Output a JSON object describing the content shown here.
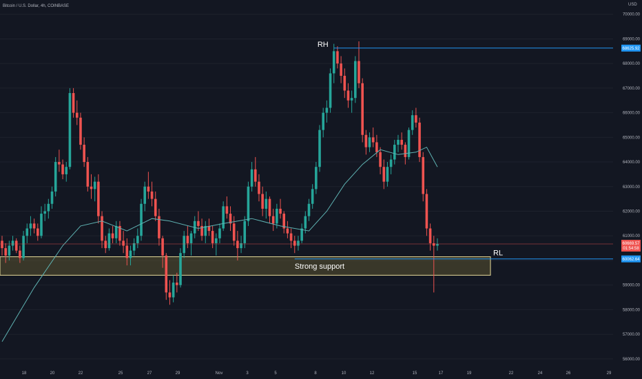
{
  "header": {
    "symbol": "Bitcoin / U.S. Dollar, 4h, COINBASE",
    "currency": "USD"
  },
  "colors": {
    "background": "#131722",
    "up": "#26a69a",
    "down": "#ef5350",
    "ma": "#5fb3b3",
    "level_line": "#2196f3",
    "support_fill": "#5a5230",
    "support_border": "#e8dc9a",
    "axis_text": "#b2b5be"
  },
  "chart_data": {
    "type": "candlestick",
    "y_axis": {
      "min": 55800,
      "max": 70300,
      "ticks": [
        56000,
        57000,
        58000,
        59000,
        60000,
        61000,
        62000,
        63000,
        64000,
        65000,
        66000,
        67000,
        68000,
        69000,
        70000
      ],
      "tick_labels": [
        "56000.00",
        "57000.00",
        "58000.00",
        "59000.00",
        "60000.00",
        "61000.00",
        "62000.00",
        "63000.00",
        "64000.00",
        "65000.00",
        "66000.00",
        "67000.00",
        "68000.00",
        "69000.00",
        "70000.00"
      ]
    },
    "x_axis": {
      "tick_labels": [
        "18",
        "20",
        "22",
        "25",
        "27",
        "29",
        "Nov",
        "3",
        "5",
        "8",
        "10",
        "12",
        "15",
        "17",
        "19",
        "22",
        "24",
        "26",
        "29"
      ]
    },
    "ohlc": [
      [
        60800,
        61000,
        60200,
        60500
      ],
      [
        60500,
        60700,
        59900,
        60200
      ],
      [
        60200,
        60800,
        60000,
        60600
      ],
      [
        60600,
        61000,
        60400,
        60800
      ],
      [
        60800,
        60900,
        60300,
        60400
      ],
      [
        60400,
        60600,
        59900,
        60100
      ],
      [
        60100,
        61200,
        60000,
        61000
      ],
      [
        61000,
        61500,
        60700,
        61300
      ],
      [
        61300,
        61800,
        61000,
        61500
      ],
      [
        61500,
        61700,
        61100,
        61300
      ],
      [
        61300,
        61500,
        60800,
        61000
      ],
      [
        61000,
        62200,
        60900,
        61900
      ],
      [
        61900,
        62300,
        61600,
        62000
      ],
      [
        62000,
        62500,
        61700,
        62300
      ],
      [
        62300,
        63000,
        62100,
        62800
      ],
      [
        62800,
        64200,
        62600,
        64000
      ],
      [
        64000,
        64500,
        63600,
        63900
      ],
      [
        63900,
        64100,
        63300,
        63500
      ],
      [
        63500,
        64000,
        63200,
        63800
      ],
      [
        63800,
        67000,
        63700,
        66800
      ],
      [
        66800,
        67000,
        65800,
        66000
      ],
      [
        66000,
        66500,
        65500,
        65800
      ],
      [
        65800,
        66000,
        64500,
        64700
      ],
      [
        64700,
        65000,
        63800,
        64000
      ],
      [
        64000,
        64200,
        62800,
        63000
      ],
      [
        63000,
        63500,
        62500,
        62900
      ],
      [
        62900,
        63400,
        62400,
        63200
      ],
      [
        63200,
        63500,
        61500,
        61800
      ],
      [
        61800,
        62000,
        60500,
        60800
      ],
      [
        60800,
        61000,
        60300,
        60500
      ],
      [
        60500,
        61300,
        60400,
        61100
      ],
      [
        61100,
        61400,
        60700,
        60900
      ],
      [
        60900,
        61600,
        60700,
        61400
      ],
      [
        61400,
        61600,
        60600,
        60800
      ],
      [
        60800,
        61200,
        60300,
        60600
      ],
      [
        60600,
        60900,
        59800,
        60100
      ],
      [
        60100,
        60600,
        59800,
        60400
      ],
      [
        60400,
        60900,
        60200,
        60700
      ],
      [
        60700,
        61300,
        60500,
        61000
      ],
      [
        61000,
        62500,
        60800,
        62300
      ],
      [
        62300,
        63200,
        62000,
        63000
      ],
      [
        63000,
        63600,
        62500,
        62800
      ],
      [
        62800,
        63200,
        62200,
        62500
      ],
      [
        62500,
        62800,
        61600,
        61800
      ],
      [
        61800,
        62100,
        60600,
        60900
      ],
      [
        60900,
        61000,
        59700,
        60200
      ],
      [
        60200,
        60300,
        58400,
        58700
      ],
      [
        58700,
        59200,
        58200,
        58500
      ],
      [
        58500,
        59400,
        58300,
        59100
      ],
      [
        59100,
        59500,
        58700,
        59000
      ],
      [
        59000,
        60500,
        58900,
        60300
      ],
      [
        60300,
        61200,
        60100,
        61000
      ],
      [
        61000,
        61400,
        60500,
        60700
      ],
      [
        60700,
        61200,
        60200,
        61100
      ],
      [
        61100,
        61800,
        60900,
        61600
      ],
      [
        61600,
        62000,
        61200,
        61400
      ],
      [
        61400,
        61700,
        60800,
        61000
      ],
      [
        61000,
        61600,
        60700,
        61400
      ],
      [
        61400,
        61700,
        61000,
        61200
      ],
      [
        61200,
        61400,
        60500,
        60700
      ],
      [
        60700,
        61100,
        60200,
        60900
      ],
      [
        60900,
        61500,
        60700,
        61300
      ],
      [
        61300,
        62400,
        61200,
        62200
      ],
      [
        62200,
        62600,
        61700,
        61900
      ],
      [
        61900,
        62200,
        61200,
        61500
      ],
      [
        61500,
        61800,
        60600,
        60800
      ],
      [
        60800,
        61200,
        60000,
        60500
      ],
      [
        60500,
        61000,
        60300,
        60700
      ],
      [
        60700,
        61800,
        60500,
        61600
      ],
      [
        61600,
        63200,
        61400,
        63000
      ],
      [
        63000,
        64000,
        62800,
        63700
      ],
      [
        63700,
        64200,
        63000,
        63200
      ],
      [
        63200,
        63500,
        62400,
        62700
      ],
      [
        62700,
        63000,
        61800,
        62100
      ],
      [
        62100,
        62800,
        61700,
        62500
      ],
      [
        62500,
        62600,
        61500,
        61800
      ],
      [
        61800,
        62100,
        61200,
        61500
      ],
      [
        61500,
        62300,
        61300,
        62100
      ],
      [
        62100,
        62500,
        61700,
        61900
      ],
      [
        61900,
        62000,
        61100,
        61300
      ],
      [
        61300,
        61600,
        60900,
        61100
      ],
      [
        61100,
        61300,
        60500,
        60800
      ],
      [
        60800,
        61000,
        60300,
        60600
      ],
      [
        60600,
        61000,
        60400,
        60800
      ],
      [
        60800,
        61500,
        60700,
        61300
      ],
      [
        61300,
        62000,
        61100,
        61800
      ],
      [
        61800,
        62500,
        61600,
        62300
      ],
      [
        62300,
        63100,
        62100,
        62900
      ],
      [
        62900,
        64000,
        62700,
        63800
      ],
      [
        63800,
        65500,
        63600,
        65300
      ],
      [
        65300,
        66200,
        65000,
        66000
      ],
      [
        66000,
        66500,
        65600,
        66200
      ],
      [
        66200,
        67800,
        66000,
        67600
      ],
      [
        67600,
        68800,
        67200,
        68500
      ],
      [
        68500,
        68700,
        67800,
        68000
      ],
      [
        68000,
        68300,
        67200,
        67500
      ],
      [
        67500,
        67800,
        66600,
        66900
      ],
      [
        66900,
        67200,
        66200,
        66500
      ],
      [
        66500,
        66900,
        66000,
        66600
      ],
      [
        66600,
        68300,
        66400,
        68100
      ],
      [
        68100,
        68900,
        67000,
        67200
      ],
      [
        67200,
        67400,
        64800,
        65100
      ],
      [
        65100,
        65300,
        64300,
        64600
      ],
      [
        64600,
        65200,
        64400,
        65000
      ],
      [
        65000,
        65400,
        64600,
        64800
      ],
      [
        64800,
        65100,
        64200,
        64400
      ],
      [
        64400,
        64600,
        63500,
        63800
      ],
      [
        63800,
        64100,
        62900,
        63200
      ],
      [
        63200,
        64000,
        63000,
        63800
      ],
      [
        63800,
        64300,
        63500,
        64100
      ],
      [
        64100,
        64900,
        63900,
        64700
      ],
      [
        64700,
        65100,
        64400,
        64900
      ],
      [
        64900,
        65200,
        64500,
        64700
      ],
      [
        64700,
        64800,
        63900,
        64200
      ],
      [
        64200,
        65400,
        64100,
        65300
      ],
      [
        65300,
        66100,
        65100,
        65900
      ],
      [
        65900,
        66200,
        65400,
        65600
      ],
      [
        65600,
        65800,
        64000,
        64200
      ],
      [
        64200,
        64400,
        62400,
        62700
      ],
      [
        62700,
        62900,
        61000,
        61300
      ],
      [
        61300,
        61500,
        60400,
        60700
      ],
      [
        60700,
        61000,
        58700,
        60600
      ],
      [
        60600,
        60900,
        60400,
        60669
      ]
    ],
    "ma": [
      [
        0,
        56700
      ],
      [
        9,
        58900
      ],
      [
        17,
        60600
      ],
      [
        22,
        61400
      ],
      [
        28,
        61600
      ],
      [
        35,
        61200
      ],
      [
        42,
        61700
      ],
      [
        47,
        61600
      ],
      [
        55,
        61300
      ],
      [
        62,
        61500
      ],
      [
        70,
        61700
      ],
      [
        78,
        61400
      ],
      [
        86,
        61200
      ],
      [
        91,
        62000
      ],
      [
        96,
        63100
      ],
      [
        101,
        63900
      ],
      [
        106,
        64500
      ],
      [
        111,
        64300
      ],
      [
        116,
        64400
      ],
      [
        119,
        64600
      ],
      [
        122,
        63800
      ]
    ],
    "levels": {
      "rh": {
        "label": "RH",
        "value": 68625.92,
        "price_label": "68625.92"
      },
      "rl": {
        "label": "RL",
        "value": 60062.64,
        "price_label": "60062.64"
      },
      "current": {
        "price_label": "60669.57",
        "sub_label": "01:54:58"
      }
    },
    "support_zone": {
      "label": "Strong support",
      "low": 59400,
      "high": 60150
    }
  }
}
